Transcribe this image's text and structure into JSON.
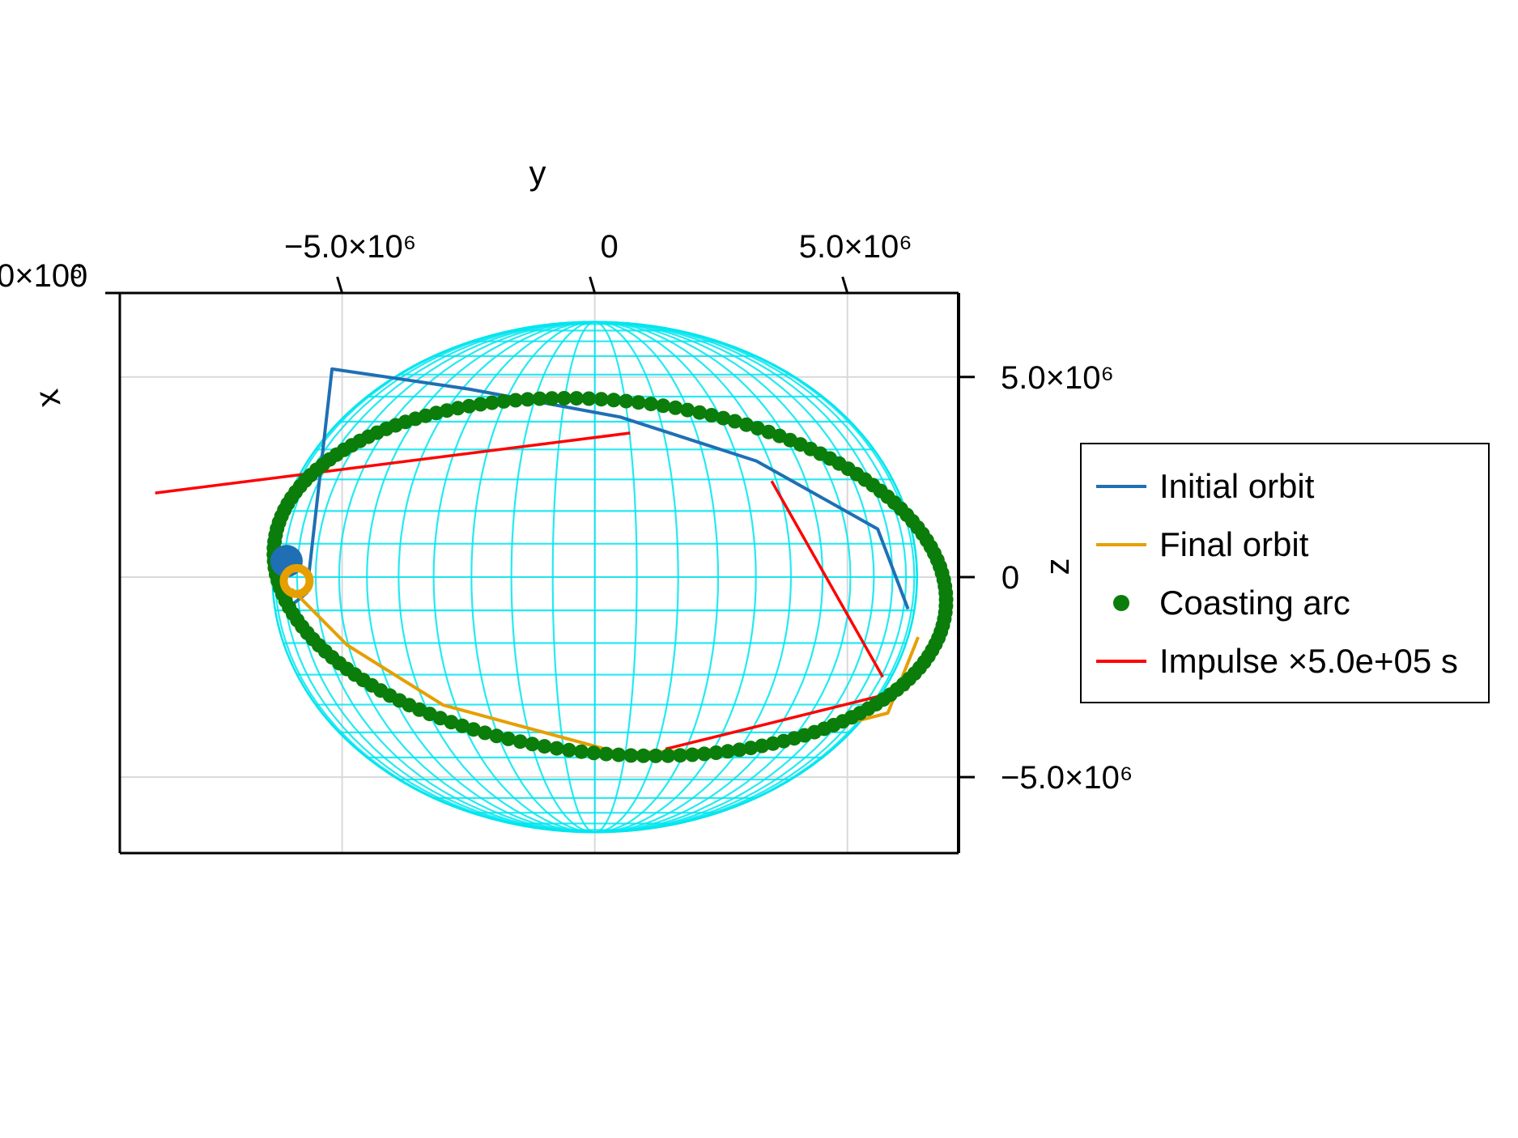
{
  "chart_data": {
    "type": "3d-line-scatter",
    "title": "",
    "xlabel": "x",
    "ylabel": "y",
    "zlabel": "z",
    "y_ticks": [
      {
        "value": -5000000,
        "label": "−5.0×10⁶"
      },
      {
        "value": 0,
        "label": "0"
      },
      {
        "value": 5000000,
        "label": "5.0×10⁶"
      }
    ],
    "z_ticks": [
      {
        "value": 5000000,
        "label": "5.0×10⁶"
      },
      {
        "value": 0,
        "label": "0"
      },
      {
        "value": -5000000,
        "label": "−5.0×10⁶"
      }
    ],
    "x_tick_overlap_text": "0×10⁶",
    "x_tick_overlap_text2": "0",
    "y_range": [
      -9400000,
      7200000
    ],
    "z_range": [
      -6900000,
      7100000
    ],
    "sphere": {
      "radius": 6378000,
      "color": "#00e5ee",
      "meridians": 24,
      "parallels": 24
    },
    "legend": {
      "position": "right",
      "entries": [
        {
          "label": "Initial orbit",
          "kind": "line",
          "color": "#1f6fb4"
        },
        {
          "label": "Final orbit",
          "kind": "line",
          "color": "#e69f00"
        },
        {
          "label": "Coasting arc",
          "kind": "marker",
          "color": "#0a7d0a"
        },
        {
          "label": "Impulse ×5.0e+05 s",
          "kind": "line",
          "color": "#ff0000"
        }
      ]
    },
    "series": [
      {
        "name": "Initial orbit",
        "color": "#1f6fb4",
        "points_yz": [
          [
            -6000000,
            -700000
          ],
          [
            -5700000,
            -400000
          ],
          [
            -5200000,
            5200000
          ],
          [
            -2500000,
            4700000
          ],
          [
            500000,
            4000000
          ],
          [
            3200000,
            2900000
          ],
          [
            5600000,
            1200000
          ],
          [
            6200000,
            -800000
          ]
        ]
      },
      {
        "name": "Final orbit",
        "color": "#e69f00",
        "points_yz": [
          [
            -6000000,
            -300000
          ],
          [
            -4900000,
            -1700000
          ],
          [
            -3000000,
            -3200000
          ],
          [
            500000,
            -4400000
          ],
          [
            3000000,
            -4300000
          ],
          [
            5800000,
            -3400000
          ],
          [
            6400000,
            -1500000
          ]
        ]
      },
      {
        "name": "Coasting arc",
        "color": "#0a7d0a",
        "ellipse": {
          "center_y": 300000,
          "center_z": 0,
          "semi_y": 6700000,
          "semi_z": 4400000,
          "tilt_deg": -9,
          "points": 170
        }
      },
      {
        "name": "Impulse ×5.0e+05 s",
        "color": "#ff0000",
        "segments_yz": [
          [
            [
              -8700000,
              2100000
            ],
            [
              700000,
              3600000
            ]
          ],
          [
            [
              3500000,
              2400000
            ],
            [
              5700000,
              -2500000
            ]
          ],
          [
            [
              1400000,
              -4300000
            ],
            [
              6200000,
              -2800000
            ]
          ]
        ]
      }
    ],
    "markers": [
      {
        "series": "Initial orbit",
        "y": -6100000,
        "z": 400000,
        "color": "#1f6fb4"
      },
      {
        "series": "Final orbit",
        "y": -5900000,
        "z": -100000,
        "color": "#e69f00"
      }
    ]
  }
}
